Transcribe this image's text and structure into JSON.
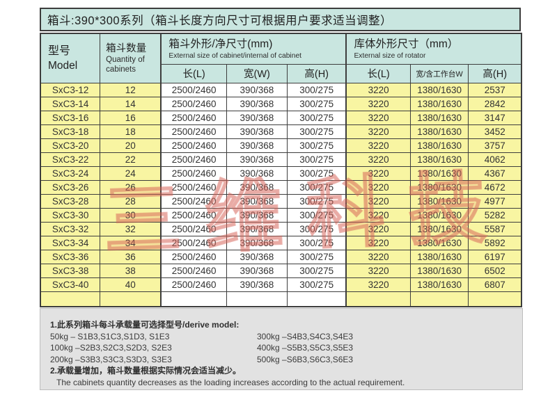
{
  "page": {
    "title": "箱斗:390*300系列（箱斗长度方向尺寸可根据用户要求适当调整）"
  },
  "colors": {
    "header_bg": "#c9e6e0",
    "row_highlight_bg": "#f8f5a2",
    "row_white_bg": "#ffffff",
    "notes_bg": "#e2e2e2",
    "border": "#3d3d3d",
    "watermark_red": "#d5625a"
  },
  "table": {
    "header": {
      "model_cn": "型号",
      "model_en": "Model",
      "qty_cn": "箱斗数量",
      "qty_en": "Quantity of cabinets",
      "cabinet_group_cn": "箱斗外形/净尺寸(mm)",
      "cabinet_group_en": "External size of cabinet/internal of cabinet",
      "rotator_group_cn": "库体外形尺寸（mm）",
      "rotator_group_en": "External size of rotator",
      "sub": [
        "长(L)",
        "宽(W)",
        "高(H)",
        "长(L)",
        "宽/含工作台W",
        "高(H)"
      ]
    },
    "rows": [
      [
        "SxC3-12",
        "12",
        "2500/2460",
        "390/368",
        "300/275",
        "3220",
        "1380/1630",
        "2537"
      ],
      [
        "SxC3-14",
        "14",
        "2500/2460",
        "390/368",
        "300/275",
        "3220",
        "1380/1630",
        "2842"
      ],
      [
        "SxC3-16",
        "16",
        "2500/2460",
        "390/368",
        "300/275",
        "3220",
        "1380/1630",
        "3147"
      ],
      [
        "SxC3-18",
        "18",
        "2500/2460",
        "390/368",
        "300/275",
        "3220",
        "1380/1630",
        "3452"
      ],
      [
        "SxC3-20",
        "20",
        "2500/2460",
        "390/368",
        "300/275",
        "3220",
        "1380/1630",
        "3757"
      ],
      [
        "SxC3-22",
        "22",
        "2500/2460",
        "390/368",
        "300/275",
        "3220",
        "1380/1630",
        "4062"
      ],
      [
        "SxC3-24",
        "24",
        "2500/2460",
        "390/368",
        "300/275",
        "3220",
        "1380/1630",
        "4367"
      ],
      [
        "SxC3-26",
        "26",
        "2500/2460",
        "390/368",
        "300/275",
        "3220",
        "1380/1630",
        "4672"
      ],
      [
        "SxC3-28",
        "28",
        "2500/2460",
        "390/368",
        "300/275",
        "3220",
        "1380/1630",
        "4977"
      ],
      [
        "SxC3-30",
        "30",
        "2500/2460",
        "390/368",
        "300/275",
        "3220",
        "1380/1630",
        "5282"
      ],
      [
        "SxC3-32",
        "32",
        "2500/2460",
        "390/368",
        "300/275",
        "3220",
        "1380/1630",
        "5587"
      ],
      [
        "SxC3-34",
        "34",
        "2500/2460",
        "390/368",
        "300/275",
        "3220",
        "1380/1630",
        "5892"
      ],
      [
        "SxC3-36",
        "36",
        "2500/2460",
        "390/368",
        "300/275",
        "3220",
        "1380/1630",
        "6197"
      ],
      [
        "SxC3-38",
        "38",
        "2500/2460",
        "390/368",
        "300/275",
        "3220",
        "1380/1630",
        "6502"
      ],
      [
        "SxC3-40",
        "40",
        "2500/2460",
        "390/368",
        "300/275",
        "3220",
        "1380/1630",
        "6807"
      ]
    ]
  },
  "watermark": "三维科技",
  "notes": {
    "line1": "1.此系列箱斗每斗承载量可选择型号/derive model:",
    "left": [
      "50kg – S1B3,S1C3,S1D3, S1E3",
      "100kg –S2B3,S2C3,S2D3, S2E3",
      "200kg –S3B3,S3C3,S3D3, S3E3"
    ],
    "right": [
      "300kg –S4B3,S4C3,S4E3",
      "400kg –S5B3,S5C3,S5E3",
      "500kg –S6B3,S6C3,S6E3"
    ],
    "line2_cn": "2.承载量增加，箱斗数量根据实际情况会适当减少。",
    "line2_en": "The cabinets quantity decreases as the loading increases according to the actual requirement."
  }
}
